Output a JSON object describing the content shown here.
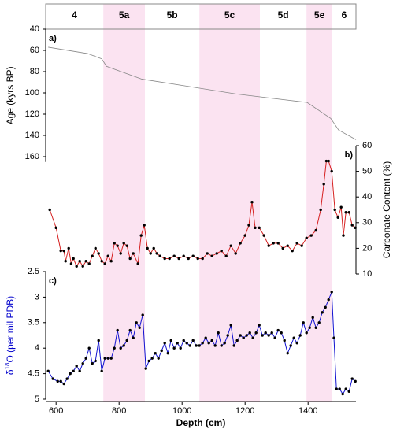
{
  "stages": [
    {
      "label": "4",
      "from": 567,
      "to": 750,
      "highlight": false
    },
    {
      "label": "5a",
      "from": 750,
      "to": 882,
      "highlight": true
    },
    {
      "label": "5b",
      "from": 882,
      "to": 1055,
      "highlight": false
    },
    {
      "label": "5c",
      "from": 1055,
      "to": 1247,
      "highlight": true
    },
    {
      "label": "5d",
      "from": 1247,
      "to": 1395,
      "highlight": false
    },
    {
      "label": "5e",
      "from": 1395,
      "to": 1477,
      "highlight": true
    },
    {
      "label": "6",
      "from": 1477,
      "to": 1552,
      "highlight": false
    }
  ],
  "band_color": "#fbe3f1",
  "chart_data": [
    {
      "type": "line",
      "annotation": "a)",
      "ylabel": "Age (kyrs BP)",
      "yaxis_side": "left",
      "yreverse": true,
      "xlim": [
        567,
        1552
      ],
      "ylim": [
        40,
        165
      ],
      "yticks": [
        40,
        60,
        80,
        100,
        120,
        140,
        160
      ],
      "markers": false,
      "x": [
        575,
        700,
        745,
        760,
        872,
        1172,
        1397,
        1472,
        1497,
        1552
      ],
      "series": [
        {
          "color": "#888888",
          "values": [
            57,
            63,
            68,
            75,
            87,
            101,
            109,
            124,
            135,
            144
          ]
        }
      ]
    },
    {
      "type": "line",
      "annotation": "b)",
      "ylabel": "Carbonate Content (%)",
      "ylabel_color": "#b22222",
      "yaxis_side": "right",
      "yreverse": false,
      "xlim": [
        567,
        1552
      ],
      "ylim": [
        10,
        60
      ],
      "yticks": [
        10,
        20,
        30,
        40,
        50,
        60
      ],
      "markers": true,
      "x": [
        580,
        600,
        615,
        625,
        630,
        640,
        648,
        655,
        665,
        675,
        685,
        695,
        705,
        715,
        725,
        735,
        745,
        755,
        765,
        775,
        785,
        795,
        805,
        815,
        825,
        835,
        845,
        860,
        870,
        880,
        890,
        900,
        910,
        920,
        930,
        945,
        960,
        975,
        990,
        1005,
        1020,
        1035,
        1050,
        1065,
        1080,
        1095,
        1110,
        1125,
        1140,
        1155,
        1170,
        1185,
        1200,
        1212,
        1222,
        1232,
        1245,
        1260,
        1275,
        1290,
        1305,
        1320,
        1335,
        1350,
        1365,
        1380,
        1395,
        1410,
        1425,
        1440,
        1450,
        1458,
        1465,
        1475,
        1485,
        1495,
        1505,
        1512,
        1520,
        1530,
        1540,
        1550
      ],
      "series": [
        {
          "color": "#d62020",
          "values": [
            35,
            28,
            19,
            19,
            15,
            20,
            14,
            16,
            13,
            15,
            13,
            15,
            14,
            17,
            20,
            18,
            15,
            14,
            17,
            15,
            22,
            21,
            18,
            22,
            21,
            16,
            18,
            14,
            25,
            29,
            20,
            18,
            20,
            18,
            17,
            16,
            16,
            17,
            16,
            17,
            16,
            17,
            16,
            16,
            18,
            17,
            18,
            19,
            17,
            21,
            18,
            22,
            25,
            29,
            38,
            28,
            28,
            25,
            21,
            22,
            22,
            20,
            21,
            19,
            22,
            21,
            24,
            25,
            27,
            35,
            45,
            54,
            54,
            50,
            35,
            32,
            36,
            25,
            34,
            34,
            29,
            28
          ]
        }
      ]
    },
    {
      "type": "line",
      "annotation": "c)",
      "ylabel_parts": [
        "δ",
        "18",
        "O (per mil PDB)"
      ],
      "ylabel_color": "#0000cc",
      "yaxis_side": "left",
      "yreverse": true,
      "xlim": [
        567,
        1552
      ],
      "ylim": [
        2.5,
        5
      ],
      "yticks": [
        2.5,
        3,
        3.5,
        4,
        4.5,
        5
      ],
      "xticks": [
        600,
        800,
        1000,
        1200,
        1400
      ],
      "xlabel": "Depth (cm)",
      "markers": true,
      "x": [
        575,
        590,
        605,
        615,
        625,
        635,
        645,
        655,
        665,
        675,
        685,
        695,
        705,
        715,
        725,
        735,
        745,
        755,
        765,
        775,
        785,
        795,
        805,
        815,
        825,
        835,
        845,
        855,
        865,
        875,
        885,
        895,
        905,
        915,
        925,
        935,
        945,
        955,
        965,
        975,
        985,
        995,
        1005,
        1015,
        1025,
        1035,
        1045,
        1055,
        1065,
        1075,
        1085,
        1095,
        1105,
        1115,
        1125,
        1135,
        1145,
        1155,
        1165,
        1175,
        1185,
        1195,
        1205,
        1215,
        1225,
        1235,
        1245,
        1255,
        1265,
        1275,
        1285,
        1295,
        1305,
        1315,
        1325,
        1335,
        1345,
        1355,
        1365,
        1375,
        1385,
        1395,
        1405,
        1415,
        1425,
        1435,
        1445,
        1455,
        1465,
        1475,
        1482,
        1490,
        1500,
        1510,
        1520,
        1530,
        1540,
        1550
      ],
      "series": [
        {
          "color": "#1010d0",
          "values": [
            4.45,
            4.6,
            4.65,
            4.65,
            4.7,
            4.6,
            4.5,
            4.45,
            4.35,
            4.45,
            4.3,
            4.2,
            4.0,
            4.3,
            4.25,
            3.85,
            4.45,
            4.2,
            4.2,
            4.2,
            4.0,
            3.65,
            4.0,
            3.95,
            3.85,
            3.65,
            3.8,
            3.5,
            3.6,
            3.35,
            4.4,
            4.25,
            4.2,
            4.1,
            4.2,
            4.05,
            3.9,
            4.1,
            3.85,
            4.0,
            3.9,
            4.0,
            3.85,
            3.9,
            3.95,
            3.85,
            3.95,
            3.95,
            3.9,
            3.8,
            3.9,
            3.85,
            3.95,
            3.7,
            3.95,
            3.9,
            3.75,
            3.55,
            3.95,
            3.85,
            3.75,
            3.8,
            3.75,
            3.7,
            3.8,
            3.7,
            3.55,
            3.75,
            3.7,
            3.75,
            3.7,
            3.8,
            3.65,
            3.7,
            3.85,
            4.1,
            3.95,
            3.8,
            3.9,
            3.75,
            3.5,
            3.7,
            3.6,
            3.4,
            3.6,
            3.5,
            3.3,
            3.2,
            3.05,
            2.9,
            3.8,
            4.8,
            4.8,
            4.9,
            4.8,
            4.85,
            4.6,
            4.65
          ]
        }
      ]
    }
  ]
}
